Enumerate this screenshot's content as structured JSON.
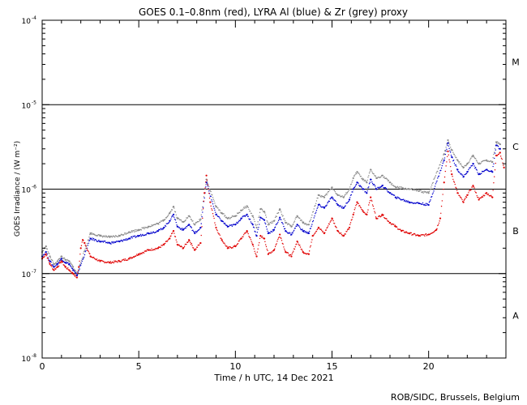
{
  "chart_data": {
    "type": "scatter",
    "title": "GOES 0.1–0.8nm (red), LYRA Al (blue) & Zr (grey) proxy",
    "xlabel": "Time / h UTC, 14 Dec 2021",
    "ylabel": "GOES Irradiance / (W m⁻²)",
    "yscale": "log",
    "xlim": [
      0,
      24
    ],
    "ylim": [
      1e-08,
      0.0001
    ],
    "x_ticks": [
      0,
      5,
      10,
      15,
      20
    ],
    "y_ticks": [
      {
        "value": 1e-08,
        "base": "10",
        "exp": "-8"
      },
      {
        "value": 1e-07,
        "base": "10",
        "exp": "-7"
      },
      {
        "value": 1e-06,
        "base": "10",
        "exp": "-6"
      },
      {
        "value": 1e-05,
        "base": "10",
        "exp": "-5"
      },
      {
        "value": 0.0001,
        "base": "10",
        "exp": "-4"
      }
    ],
    "threshold_lines": [
      1e-07,
      1e-06,
      1e-05
    ],
    "flare_classes": [
      {
        "label": "A",
        "value": 3.2e-08
      },
      {
        "label": "B",
        "value": 3.2e-07
      },
      {
        "label": "C",
        "value": 3.2e-06
      },
      {
        "label": "M",
        "value": 3.2e-05
      }
    ],
    "series": [
      {
        "name": "GOES 0.1-0.8nm",
        "color": "#e00000",
        "x": [
          0.0,
          0.2,
          0.4,
          0.6,
          0.8,
          1.0,
          1.2,
          1.4,
          1.6,
          1.8,
          1.9,
          2.0,
          2.1,
          2.2,
          2.5,
          3.0,
          3.5,
          4.0,
          4.5,
          5.0,
          5.5,
          6.0,
          6.3,
          6.6,
          6.8,
          7.0,
          7.3,
          7.6,
          7.9,
          8.2,
          8.4,
          8.5,
          8.7,
          9.0,
          9.3,
          9.6,
          10.0,
          10.3,
          10.6,
          10.9,
          11.1,
          11.3,
          11.5,
          11.7,
          12.0,
          12.3,
          12.6,
          12.9,
          13.2,
          13.5,
          13.8,
          14.0,
          14.3,
          14.6,
          15.0,
          15.3,
          15.6,
          15.9,
          16.1,
          16.3,
          16.6,
          16.8,
          17.0,
          17.3,
          17.6,
          18.0,
          18.3,
          18.6,
          19.0,
          19.5,
          20.0,
          20.4,
          20.6,
          20.8,
          21.0,
          21.2,
          21.5,
          21.8,
          22.0,
          22.3,
          22.6,
          23.0,
          23.3,
          23.5,
          23.7,
          23.9
        ],
        "y": [
          1.5e-07,
          1.7e-07,
          1.3e-07,
          1.1e-07,
          1.2e-07,
          1.4e-07,
          1.2e-07,
          1.1e-07,
          1e-07,
          9e-08,
          1.2e-07,
          2e-07,
          2.5e-07,
          2.3e-07,
          1.6e-07,
          1.4e-07,
          1.35e-07,
          1.4e-07,
          1.5e-07,
          1.7e-07,
          1.9e-07,
          2e-07,
          2.2e-07,
          2.6e-07,
          3.2e-07,
          2.2e-07,
          2e-07,
          2.5e-07,
          1.9e-07,
          2.3e-07,
          9e-07,
          1.45e-06,
          7e-07,
          3.5e-07,
          2.5e-07,
          2e-07,
          2.1e-07,
          2.6e-07,
          3.2e-07,
          2.2e-07,
          1.6e-07,
          2.8e-07,
          2.6e-07,
          1.7e-07,
          1.9e-07,
          2.9e-07,
          1.8e-07,
          1.6e-07,
          2.4e-07,
          1.8e-07,
          1.7e-07,
          2.8e-07,
          3.5e-07,
          3e-07,
          4.5e-07,
          3.2e-07,
          2.8e-07,
          3.5e-07,
          5e-07,
          7e-07,
          5.5e-07,
          5e-07,
          8e-07,
          4.5e-07,
          5e-07,
          4e-07,
          3.6e-07,
          3.2e-07,
          3e-07,
          2.8e-07,
          2.9e-07,
          3.3e-07,
          4.5e-07,
          1.2e-06,
          2.8e-06,
          1.5e-06,
          9e-07,
          7e-07,
          8.5e-07,
          1.1e-06,
          7.5e-07,
          9e-07,
          8e-07,
          2.5e-06,
          2.7e-06,
          1.8e-06
        ]
      },
      {
        "name": "LYRA Al proxy",
        "color": "#0000cc",
        "x": [
          0.0,
          0.2,
          0.4,
          0.6,
          0.8,
          1.0,
          1.2,
          1.4,
          1.6,
          1.8,
          2.5,
          3.0,
          3.5,
          4.0,
          4.5,
          5.0,
          5.5,
          6.0,
          6.3,
          6.6,
          6.8,
          7.0,
          7.3,
          7.6,
          7.9,
          8.2,
          8.5,
          9.0,
          9.3,
          9.6,
          10.0,
          10.3,
          10.6,
          10.9,
          11.1,
          11.3,
          11.5,
          11.7,
          12.0,
          12.3,
          12.6,
          12.9,
          13.2,
          13.5,
          13.8,
          14.3,
          14.6,
          15.0,
          15.3,
          15.6,
          15.9,
          16.1,
          16.3,
          16.6,
          16.8,
          17.0,
          17.3,
          17.6,
          18.0,
          18.3,
          19.0,
          19.5,
          20.0,
          20.8,
          21.0,
          21.2,
          21.5,
          21.8,
          22.0,
          22.3,
          22.6,
          23.0,
          23.3,
          23.5,
          23.7
        ],
        "y": [
          1.6e-07,
          1.8e-07,
          1.4e-07,
          1.2e-07,
          1.3e-07,
          1.5e-07,
          1.35e-07,
          1.3e-07,
          1.1e-07,
          9.5e-08,
          2.6e-07,
          2.4e-07,
          2.3e-07,
          2.4e-07,
          2.6e-07,
          2.8e-07,
          3e-07,
          3.2e-07,
          3.5e-07,
          4.2e-07,
          5e-07,
          3.6e-07,
          3.3e-07,
          3.8e-07,
          3e-07,
          3.5e-07,
          1.2e-06,
          5e-07,
          4.2e-07,
          3.6e-07,
          3.8e-07,
          4.5e-07,
          5e-07,
          3.8e-07,
          2.8e-07,
          4.6e-07,
          4.3e-07,
          3e-07,
          3.3e-07,
          4.6e-07,
          3.2e-07,
          2.9e-07,
          3.8e-07,
          3.2e-07,
          3e-07,
          6.5e-07,
          6e-07,
          8e-07,
          6.5e-07,
          6e-07,
          7.5e-07,
          1e-06,
          1.2e-06,
          1e-06,
          9e-07,
          1.3e-06,
          1e-06,
          1.1e-06,
          9e-07,
          8e-07,
          7e-07,
          6.8e-07,
          6.5e-07,
          2.2e-06,
          3.5e-06,
          2.4e-06,
          1.7e-06,
          1.4e-06,
          1.6e-06,
          2e-06,
          1.5e-06,
          1.7e-06,
          1.6e-06,
          3.3e-06,
          3e-06
        ]
      },
      {
        "name": "LYRA Zr proxy",
        "color": "#888888",
        "x": [
          0.0,
          0.2,
          0.4,
          0.6,
          0.8,
          1.0,
          1.2,
          1.4,
          1.6,
          1.8,
          2.5,
          3.0,
          3.5,
          4.0,
          4.5,
          5.0,
          5.5,
          6.0,
          6.3,
          6.6,
          6.8,
          7.0,
          7.3,
          7.6,
          7.9,
          8.2,
          8.5,
          9.0,
          9.3,
          9.6,
          10.0,
          10.3,
          10.6,
          10.9,
          11.1,
          11.3,
          11.5,
          11.7,
          12.0,
          12.3,
          12.6,
          12.9,
          13.2,
          13.5,
          13.8,
          14.3,
          14.6,
          15.0,
          15.3,
          15.6,
          15.9,
          16.1,
          16.3,
          16.6,
          16.8,
          17.0,
          17.3,
          17.6,
          18.0,
          18.3,
          19.0,
          19.5,
          20.0,
          20.8,
          21.0,
          21.2,
          21.5,
          21.8,
          22.0,
          22.3,
          22.6,
          23.0,
          23.3,
          23.5,
          23.7
        ],
        "y": [
          1.8e-07,
          2.1e-07,
          1.6e-07,
          1.3e-07,
          1.4e-07,
          1.6e-07,
          1.45e-07,
          1.4e-07,
          1.2e-07,
          1e-07,
          3e-07,
          2.8e-07,
          2.7e-07,
          2.8e-07,
          3.1e-07,
          3.3e-07,
          3.6e-07,
          3.9e-07,
          4.3e-07,
          5.2e-07,
          6.2e-07,
          4.5e-07,
          4.1e-07,
          4.8e-07,
          3.8e-07,
          4.4e-07,
          1.3e-06,
          6.2e-07,
          5.2e-07,
          4.5e-07,
          4.8e-07,
          5.6e-07,
          6.3e-07,
          4.8e-07,
          3.5e-07,
          5.8e-07,
          5.4e-07,
          3.8e-07,
          4.2e-07,
          5.8e-07,
          4e-07,
          3.6e-07,
          4.8e-07,
          4e-07,
          3.8e-07,
          8.5e-07,
          8e-07,
          1.05e-06,
          8.5e-07,
          8e-07,
          1e-06,
          1.35e-06,
          1.6e-06,
          1.3e-06,
          1.2e-06,
          1.7e-06,
          1.35e-06,
          1.45e-06,
          1.2e-06,
          1.05e-06,
          1e-06,
          9.5e-07,
          9e-07,
          2.6e-06,
          3.8e-06,
          2.9e-06,
          2.2e-06,
          1.8e-06,
          2e-06,
          2.5e-06,
          2e-06,
          2.2e-06,
          2.1e-06,
          3.6e-06,
          3.4e-06
        ]
      }
    ]
  },
  "credit": "ROB/SIDC, Brussels, Belgium"
}
